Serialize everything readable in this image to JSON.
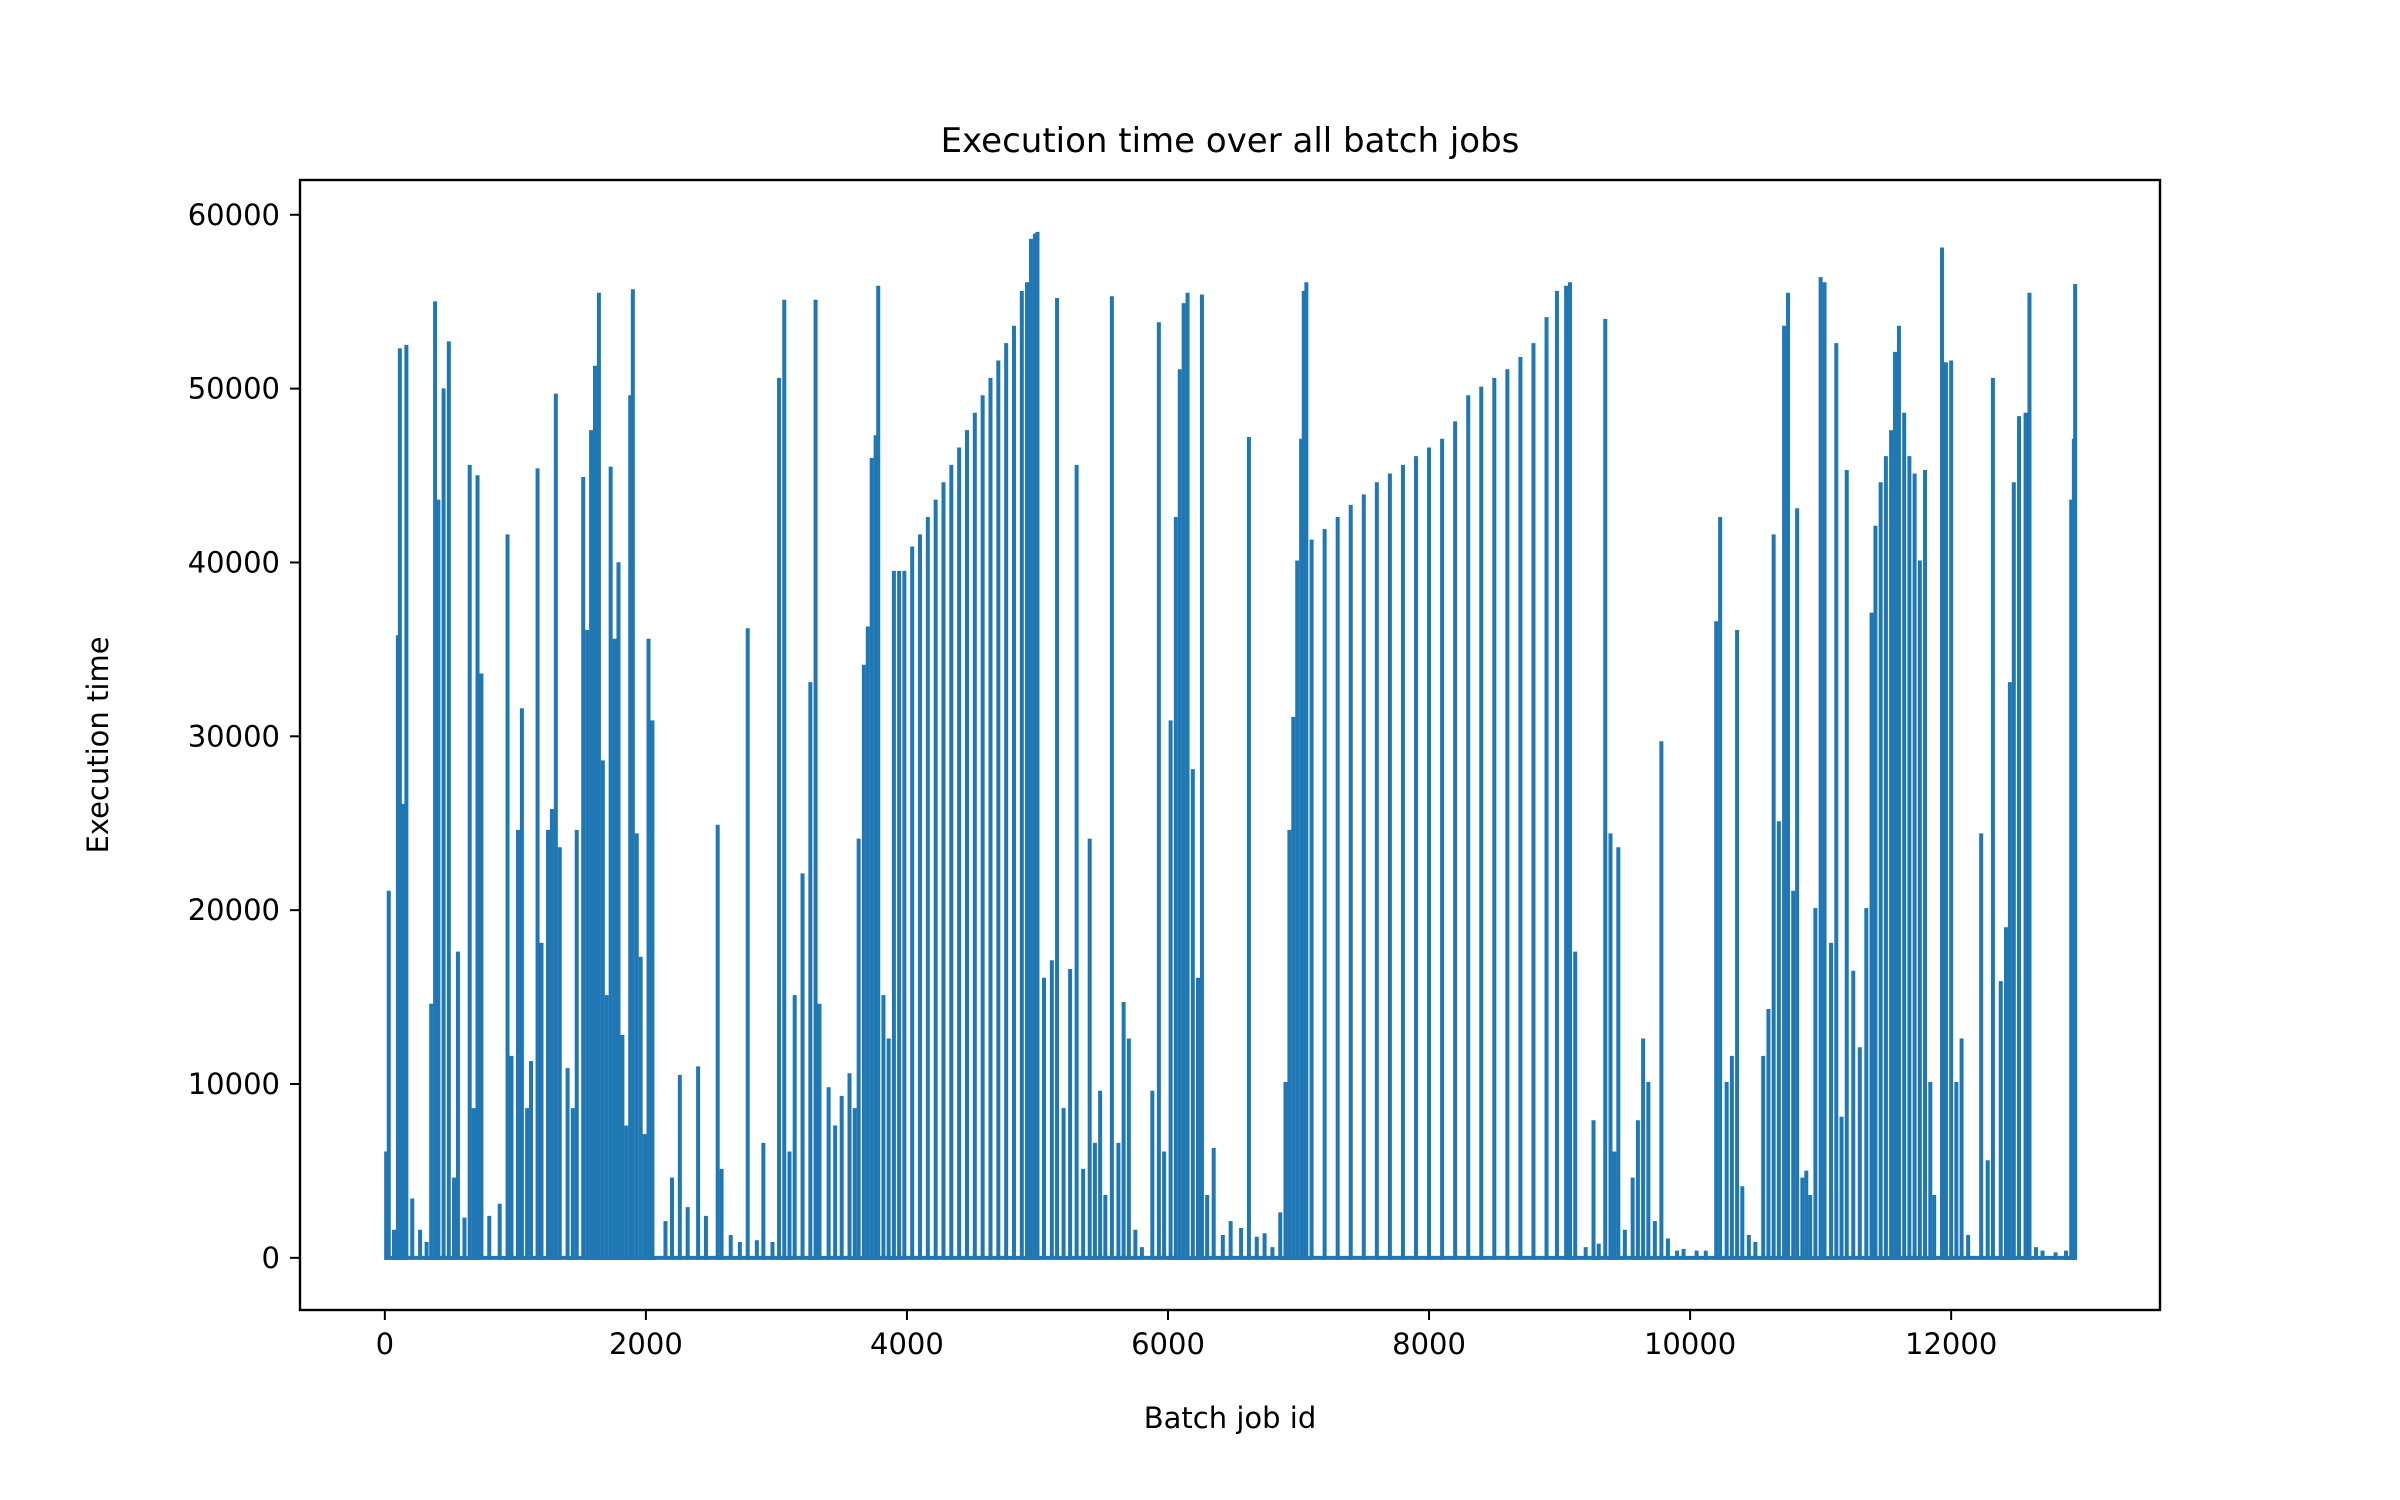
{
  "chart_data": {
    "type": "line",
    "title": "Execution time over all batch jobs",
    "xlabel": "Batch job id",
    "ylabel": "Execution time",
    "xlim": [
      -650,
      13600
    ],
    "ylim": [
      -3000,
      62000
    ],
    "xticks": [
      0,
      2000,
      4000,
      6000,
      8000,
      10000,
      12000
    ],
    "yticks": [
      0,
      10000,
      20000,
      30000,
      40000,
      50000,
      60000
    ],
    "grid": false,
    "legend": "none",
    "series": [
      {
        "color": "#1f77b4",
        "x_start": 0,
        "x_end": 12950,
        "baseline": 0,
        "spikes": [
          [
            10,
            6000
          ],
          [
            30,
            21000
          ],
          [
            70,
            1500
          ],
          [
            100,
            35700
          ],
          [
            115,
            52200
          ],
          [
            140,
            26000
          ],
          [
            165,
            52400
          ],
          [
            210,
            3300
          ],
          [
            270,
            1500
          ],
          [
            320,
            800
          ],
          [
            355,
            14500
          ],
          [
            385,
            54900
          ],
          [
            410,
            43500
          ],
          [
            450,
            49900
          ],
          [
            490,
            52600
          ],
          [
            530,
            4500
          ],
          [
            560,
            17500
          ],
          [
            610,
            2200
          ],
          [
            650,
            45500
          ],
          [
            680,
            8500
          ],
          [
            710,
            44900
          ],
          [
            740,
            33500
          ],
          [
            800,
            2300
          ],
          [
            880,
            3000
          ],
          [
            940,
            41500
          ],
          [
            970,
            11500
          ],
          [
            1020,
            24500
          ],
          [
            1050,
            31500
          ],
          [
            1090,
            8500
          ],
          [
            1120,
            11200
          ],
          [
            1170,
            45300
          ],
          [
            1200,
            18000
          ],
          [
            1250,
            24500
          ],
          [
            1280,
            25700
          ],
          [
            1310,
            49600
          ],
          [
            1340,
            23500
          ],
          [
            1400,
            10800
          ],
          [
            1440,
            8500
          ],
          [
            1470,
            24500
          ],
          [
            1520,
            44800
          ],
          [
            1550,
            36000
          ],
          [
            1580,
            47500
          ],
          [
            1610,
            51200
          ],
          [
            1640,
            55400
          ],
          [
            1670,
            28500
          ],
          [
            1700,
            15000
          ],
          [
            1730,
            45400
          ],
          [
            1760,
            35500
          ],
          [
            1790,
            39900
          ],
          [
            1820,
            12700
          ],
          [
            1850,
            7500
          ],
          [
            1880,
            49500
          ],
          [
            1900,
            55600
          ],
          [
            1930,
            24300
          ],
          [
            1960,
            17200
          ],
          [
            1990,
            7000
          ],
          [
            2020,
            35500
          ],
          [
            2050,
            30800
          ],
          [
            2150,
            2000
          ],
          [
            2200,
            4500
          ],
          [
            2260,
            10400
          ],
          [
            2320,
            2800
          ],
          [
            2400,
            10900
          ],
          [
            2460,
            2300
          ],
          [
            2550,
            24800
          ],
          [
            2580,
            5000
          ],
          [
            2650,
            1200
          ],
          [
            2720,
            800
          ],
          [
            2780,
            36100
          ],
          [
            2850,
            900
          ],
          [
            2900,
            6500
          ],
          [
            2970,
            800
          ],
          [
            3020,
            50500
          ],
          [
            3060,
            55000
          ],
          [
            3100,
            6000
          ],
          [
            3140,
            15000
          ],
          [
            3200,
            22000
          ],
          [
            3260,
            33000
          ],
          [
            3300,
            55000
          ],
          [
            3330,
            14500
          ],
          [
            3400,
            9700
          ],
          [
            3450,
            7500
          ],
          [
            3500,
            9200
          ],
          [
            3560,
            10500
          ],
          [
            3600,
            8500
          ],
          [
            3630,
            24000
          ],
          [
            3670,
            34000
          ],
          [
            3700,
            36200
          ],
          [
            3730,
            45900
          ],
          [
            3760,
            47200
          ],
          [
            3780,
            55800
          ],
          [
            3820,
            15000
          ],
          [
            3860,
            12500
          ],
          [
            3900,
            39400
          ],
          [
            3940,
            39400
          ],
          [
            3980,
            39400
          ],
          [
            4040,
            40800
          ],
          [
            4100,
            41500
          ],
          [
            4160,
            42500
          ],
          [
            4220,
            43500
          ],
          [
            4280,
            44500
          ],
          [
            4340,
            45500
          ],
          [
            4400,
            46500
          ],
          [
            4460,
            47500
          ],
          [
            4520,
            48500
          ],
          [
            4580,
            49500
          ],
          [
            4640,
            50500
          ],
          [
            4700,
            51500
          ],
          [
            4760,
            52500
          ],
          [
            4820,
            53500
          ],
          [
            4880,
            55500
          ],
          [
            4920,
            56000
          ],
          [
            4950,
            58500
          ],
          [
            4980,
            58800
          ],
          [
            5000,
            58900
          ],
          [
            5050,
            16000
          ],
          [
            5110,
            17000
          ],
          [
            5150,
            55100
          ],
          [
            5200,
            8500
          ],
          [
            5250,
            16500
          ],
          [
            5300,
            45500
          ],
          [
            5350,
            5000
          ],
          [
            5400,
            24000
          ],
          [
            5440,
            6500
          ],
          [
            5480,
            9500
          ],
          [
            5520,
            3500
          ],
          [
            5570,
            55200
          ],
          [
            5620,
            6500
          ],
          [
            5660,
            14600
          ],
          [
            5700,
            12500
          ],
          [
            5750,
            1500
          ],
          [
            5800,
            500
          ],
          [
            5880,
            9500
          ],
          [
            5930,
            53700
          ],
          [
            5970,
            6000
          ],
          [
            6020,
            30800
          ],
          [
            6060,
            42500
          ],
          [
            6090,
            51000
          ],
          [
            6120,
            54800
          ],
          [
            6150,
            55400
          ],
          [
            6190,
            28000
          ],
          [
            6230,
            16000
          ],
          [
            6260,
            55300
          ],
          [
            6300,
            3500
          ],
          [
            6350,
            6200
          ],
          [
            6420,
            1200
          ],
          [
            6480,
            2000
          ],
          [
            6560,
            1600
          ],
          [
            6620,
            47100
          ],
          [
            6680,
            1100
          ],
          [
            6740,
            1300
          ],
          [
            6800,
            500
          ],
          [
            6860,
            2500
          ],
          [
            6900,
            10000
          ],
          [
            6930,
            24500
          ],
          [
            6960,
            31000
          ],
          [
            6990,
            40000
          ],
          [
            7020,
            47000
          ],
          [
            7040,
            55500
          ],
          [
            7060,
            56000
          ],
          [
            7100,
            41200
          ],
          [
            7200,
            41800
          ],
          [
            7300,
            42500
          ],
          [
            7400,
            43200
          ],
          [
            7500,
            43800
          ],
          [
            7600,
            44500
          ],
          [
            7700,
            45000
          ],
          [
            7800,
            45500
          ],
          [
            7900,
            46000
          ],
          [
            8000,
            46500
          ],
          [
            8100,
            47000
          ],
          [
            8200,
            48000
          ],
          [
            8300,
            49500
          ],
          [
            8400,
            50000
          ],
          [
            8500,
            50500
          ],
          [
            8600,
            51000
          ],
          [
            8700,
            51700
          ],
          [
            8800,
            52500
          ],
          [
            8900,
            54000
          ],
          [
            8980,
            55500
          ],
          [
            9050,
            55800
          ],
          [
            9080,
            56000
          ],
          [
            9120,
            17500
          ],
          [
            9200,
            500
          ],
          [
            9260,
            7800
          ],
          [
            9300,
            700
          ],
          [
            9350,
            53900
          ],
          [
            9390,
            24300
          ],
          [
            9420,
            6000
          ],
          [
            9450,
            23500
          ],
          [
            9500,
            1500
          ],
          [
            9560,
            4500
          ],
          [
            9600,
            7800
          ],
          [
            9640,
            12500
          ],
          [
            9680,
            10000
          ],
          [
            9730,
            2000
          ],
          [
            9780,
            29600
          ],
          [
            9830,
            1000
          ],
          [
            9900,
            300
          ],
          [
            9950,
            400
          ],
          [
            10050,
            300
          ],
          [
            10120,
            300
          ],
          [
            10200,
            36500
          ],
          [
            10230,
            42500
          ],
          [
            10280,
            10000
          ],
          [
            10320,
            11500
          ],
          [
            10360,
            36000
          ],
          [
            10400,
            4000
          ],
          [
            10450,
            1200
          ],
          [
            10500,
            800
          ],
          [
            10560,
            11500
          ],
          [
            10600,
            14200
          ],
          [
            10640,
            41500
          ],
          [
            10680,
            25000
          ],
          [
            10720,
            53500
          ],
          [
            10750,
            55400
          ],
          [
            10790,
            21000
          ],
          [
            10820,
            43000
          ],
          [
            10860,
            4500
          ],
          [
            10890,
            4900
          ],
          [
            10920,
            3500
          ],
          [
            10960,
            20000
          ],
          [
            11000,
            56300
          ],
          [
            11030,
            56000
          ],
          [
            11080,
            18000
          ],
          [
            11120,
            52500
          ],
          [
            11160,
            8000
          ],
          [
            11200,
            45200
          ],
          [
            11250,
            16400
          ],
          [
            11300,
            12000
          ],
          [
            11350,
            20000
          ],
          [
            11390,
            37000
          ],
          [
            11420,
            42000
          ],
          [
            11460,
            44500
          ],
          [
            11500,
            46000
          ],
          [
            11540,
            47500
          ],
          [
            11570,
            52000
          ],
          [
            11600,
            53500
          ],
          [
            11640,
            48500
          ],
          [
            11680,
            46000
          ],
          [
            11720,
            45000
          ],
          [
            11760,
            40000
          ],
          [
            11800,
            45200
          ],
          [
            11840,
            10000
          ],
          [
            11870,
            3500
          ],
          [
            11930,
            58000
          ],
          [
            11960,
            51400
          ],
          [
            12000,
            51500
          ],
          [
            12040,
            10000
          ],
          [
            12080,
            12500
          ],
          [
            12130,
            1200
          ],
          [
            12230,
            24300
          ],
          [
            12280,
            5500
          ],
          [
            12320,
            50500
          ],
          [
            12380,
            15800
          ],
          [
            12420,
            18900
          ],
          [
            12450,
            33000
          ],
          [
            12480,
            44500
          ],
          [
            12520,
            48300
          ],
          [
            12570,
            48500
          ],
          [
            12600,
            55400
          ],
          [
            12650,
            500
          ],
          [
            12700,
            300
          ],
          [
            12800,
            200
          ],
          [
            12880,
            300
          ],
          [
            12920,
            43500
          ],
          [
            12940,
            47000
          ],
          [
            12950,
            55900
          ]
        ]
      }
    ]
  }
}
